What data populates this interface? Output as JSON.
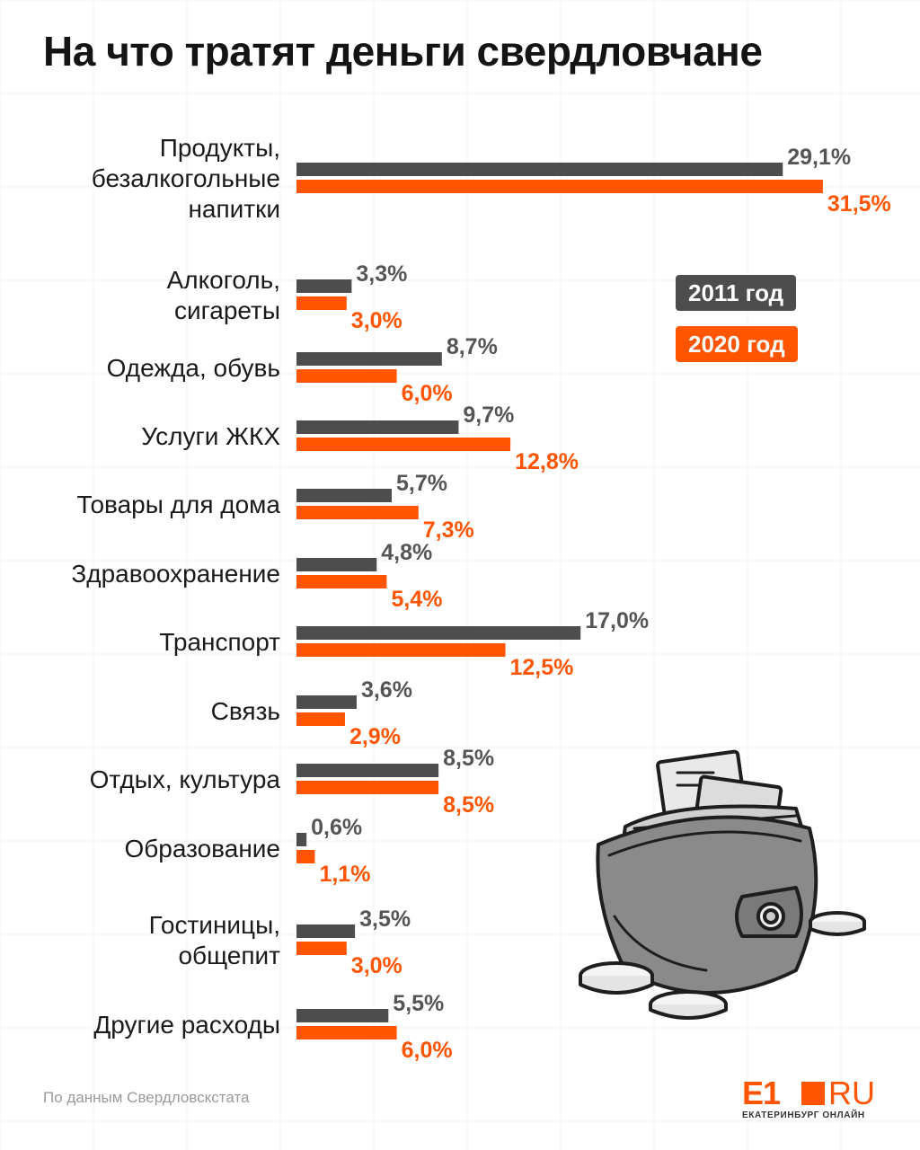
{
  "title": "На что тратят деньги свердловчане",
  "source": "По данным Свердловскстата",
  "logo": {
    "mark": "E1",
    "ru": "RU",
    "subtitle": "ЕКАТЕРИНБУРГ ОНЛАЙН"
  },
  "colors": {
    "series_2011": "#4d4d4d",
    "series_2020": "#ff5500",
    "label_2011": "#555555"
  },
  "legend": {
    "s2011": "2011 год",
    "s2020": "2020 год"
  },
  "illustration": {
    "icon": "wallet-with-money-and-coins-icon"
  },
  "chart_data": {
    "type": "bar",
    "orientation": "horizontal",
    "title": "На что тратят деньги свердловчане",
    "categories": [
      [
        "Продукты,",
        "безалкогольные",
        "напитки"
      ],
      [
        "Алкоголь,",
        "сигареты"
      ],
      [
        "Одежда, обувь"
      ],
      [
        "Услуги ЖКХ"
      ],
      [
        "Товары для дома"
      ],
      [
        "Здравоохранение"
      ],
      [
        "Транспорт"
      ],
      [
        "Связь"
      ],
      [
        "Отдых, культура"
      ],
      [
        "Образование"
      ],
      [
        "Гостиницы,",
        "общепит"
      ],
      [
        "Другие расходы"
      ]
    ],
    "series": [
      {
        "name": "2011 год",
        "values": [
          29.1,
          3.3,
          8.7,
          9.7,
          5.7,
          4.8,
          17.0,
          3.6,
          8.5,
          0.6,
          3.5,
          5.5
        ],
        "labels": [
          "29,1%",
          "3,3%",
          "8,7%",
          "9,7%",
          "5,7%",
          "4,8%",
          "17,0%",
          "3,6%",
          "8,5%",
          "0,6%",
          "3,5%",
          "5,5%"
        ]
      },
      {
        "name": "2020 год",
        "values": [
          31.5,
          3.0,
          6.0,
          12.8,
          7.3,
          5.4,
          12.5,
          2.9,
          8.5,
          1.1,
          3.0,
          6.0
        ],
        "labels": [
          "31,5%",
          "3,0%",
          "6,0%",
          "12,8%",
          "7,3%",
          "5,4%",
          "12,5%",
          "2,9%",
          "8,5%",
          "1,1%",
          "3,0%",
          "6,0%"
        ]
      }
    ],
    "unit": "%",
    "legend": "right",
    "grid": false
  }
}
